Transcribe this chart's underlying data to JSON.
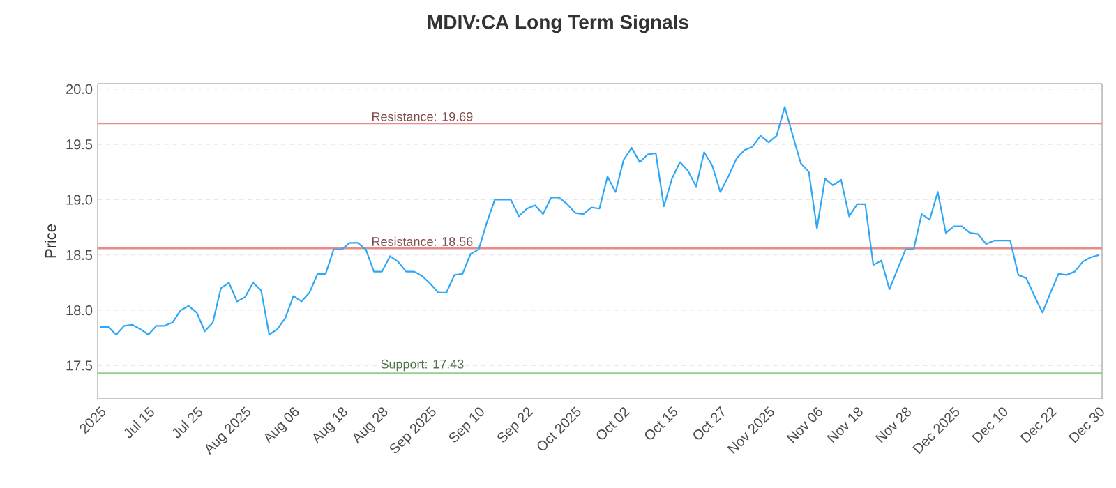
{
  "chart_data": {
    "type": "line",
    "title": "MDIV:CA Long Term Signals",
    "ylabel": "Price",
    "categories": [
      "2025",
      null,
      null,
      null,
      null,
      null,
      "Jul 15",
      null,
      null,
      null,
      null,
      null,
      "Jul 25",
      null,
      null,
      null,
      null,
      null,
      "Aug 2025",
      null,
      null,
      null,
      null,
      null,
      "Aug 06",
      null,
      null,
      null,
      null,
      null,
      "Aug 18",
      null,
      null,
      null,
      null,
      "Aug 28",
      null,
      null,
      null,
      null,
      null,
      "Sep 2025",
      null,
      null,
      null,
      null,
      null,
      "Sep 10",
      null,
      null,
      null,
      null,
      null,
      "Sep 22",
      null,
      null,
      null,
      null,
      null,
      "Oct 2025",
      null,
      null,
      null,
      null,
      null,
      "Oct 02",
      null,
      null,
      null,
      null,
      null,
      "Oct 15",
      null,
      null,
      null,
      null,
      null,
      "Oct 27",
      null,
      null,
      null,
      null,
      null,
      "Nov 2025",
      null,
      null,
      null,
      null,
      null,
      "Nov 06",
      null,
      null,
      null,
      null,
      "Nov 18",
      null,
      null,
      null,
      null,
      null,
      "Nov 28",
      null,
      null,
      null,
      null,
      null,
      "Dec 2025",
      null,
      null,
      null,
      null,
      null,
      "Dec 10",
      null,
      null,
      null,
      null,
      null,
      "Dec 22",
      null,
      null,
      null,
      null,
      null,
      "Dec 30"
    ],
    "series": [
      {
        "color": "#2ea7f7",
        "values": [
          17.85,
          17.85,
          17.78,
          17.86,
          17.87,
          17.83,
          17.78,
          17.86,
          17.86,
          17.89,
          18.0,
          18.04,
          17.98,
          17.81,
          17.89,
          18.2,
          18.25,
          18.08,
          18.12,
          18.25,
          18.18,
          17.78,
          17.83,
          17.93,
          18.13,
          18.08,
          18.16,
          18.33,
          18.33,
          18.55,
          18.55,
          18.61,
          18.61,
          18.55,
          18.35,
          18.35,
          18.49,
          18.44,
          18.35,
          18.35,
          18.31,
          18.24,
          18.16,
          18.16,
          18.32,
          18.33,
          18.51,
          18.55,
          18.79,
          19.0,
          19.0,
          19.0,
          18.85,
          18.92,
          18.95,
          18.87,
          19.02,
          19.02,
          18.96,
          18.88,
          18.87,
          18.93,
          18.92,
          19.21,
          19.07,
          19.36,
          19.47,
          19.34,
          19.41,
          19.42,
          18.94,
          19.19,
          19.34,
          19.26,
          19.12,
          19.43,
          19.31,
          19.07,
          19.21,
          19.37,
          19.45,
          19.48,
          19.58,
          19.52,
          19.58,
          19.84,
          19.58,
          19.33,
          19.25,
          18.74,
          19.19,
          19.13,
          19.18,
          18.85,
          18.96,
          18.96,
          18.41,
          18.45,
          18.19,
          18.37,
          18.55,
          18.55,
          18.87,
          18.82,
          19.07,
          18.7,
          18.76,
          18.76,
          18.7,
          18.69,
          18.6,
          18.63,
          18.63,
          18.63,
          18.32,
          18.29,
          18.13,
          17.98,
          18.16,
          18.33,
          18.32,
          18.35,
          18.44,
          18.48,
          18.5
        ]
      }
    ],
    "ylim": [
      17.2,
      20.05
    ],
    "yticks": [
      {
        "value": 17.5,
        "label": "17.5"
      },
      {
        "value": 18,
        "label": "18.0"
      },
      {
        "value": 18.5,
        "label": "18.5"
      },
      {
        "value": 19,
        "label": "19.0"
      },
      {
        "value": 19.5,
        "label": "19.5"
      },
      {
        "value": 20,
        "label": "20.0"
      }
    ],
    "grid": "y",
    "marker": "none",
    "line_style": "solid",
    "ref_lines": [
      {
        "axis": "y",
        "value": 19.69,
        "label": "Resistance: 19.69",
        "color": "#e88a8a"
      },
      {
        "axis": "y",
        "value": 18.56,
        "label": "Resistance: 18.56",
        "color": "#e88a8a"
      },
      {
        "axis": "y",
        "value": 17.43,
        "label": "Support: 17.43",
        "color": "#8fcf8a"
      }
    ]
  }
}
